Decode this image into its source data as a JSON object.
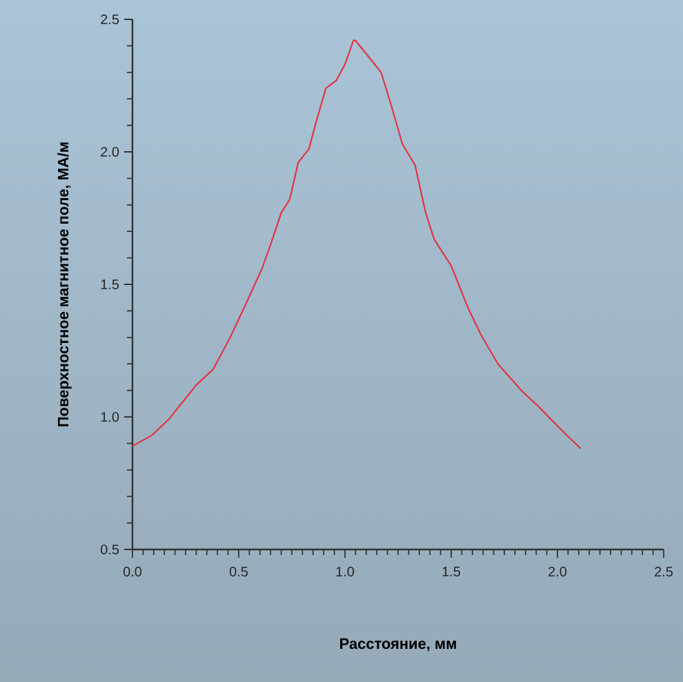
{
  "chart_data": {
    "type": "line",
    "xlabel": "Расстояние, мм",
    "ylabel": "Поверхностное магнитное поле, МА/м",
    "x": [
      0.0,
      0.09,
      0.17,
      0.24,
      0.3,
      0.38,
      0.46,
      0.53,
      0.61,
      0.65,
      0.7,
      0.74,
      0.78,
      0.83,
      0.86,
      0.91,
      0.96,
      1.0,
      1.04,
      1.05,
      1.11,
      1.17,
      1.22,
      1.27,
      1.33,
      1.38,
      1.42,
      1.5,
      1.58,
      1.64,
      1.72,
      1.83,
      1.91,
      2.02,
      2.11
    ],
    "series": [
      {
        "color": "#e03545",
        "values": [
          0.89,
          0.93,
          0.99,
          1.06,
          1.12,
          1.18,
          1.3,
          1.42,
          1.56,
          1.65,
          1.77,
          1.82,
          1.96,
          2.01,
          2.1,
          2.24,
          2.27,
          2.33,
          2.42,
          2.42,
          2.36,
          2.3,
          2.17,
          2.03,
          1.95,
          1.77,
          1.67,
          1.57,
          1.41,
          1.31,
          1.2,
          1.1,
          1.04,
          0.95,
          0.88
        ]
      }
    ],
    "xlim": [
      0,
      2.5
    ],
    "ylim": [
      0.5,
      2.5
    ],
    "xticks": [
      {
        "value": 0,
        "label": "0.0"
      },
      0.5,
      {
        "value": 1,
        "label": "1.0"
      },
      1.5,
      {
        "value": 2,
        "label": "2.0"
      },
      2.5
    ],
    "yticks": [
      0.5,
      {
        "value": 1,
        "label": "1.0"
      },
      1.5,
      {
        "value": 2,
        "label": "2.0"
      },
      2.5
    ]
  }
}
